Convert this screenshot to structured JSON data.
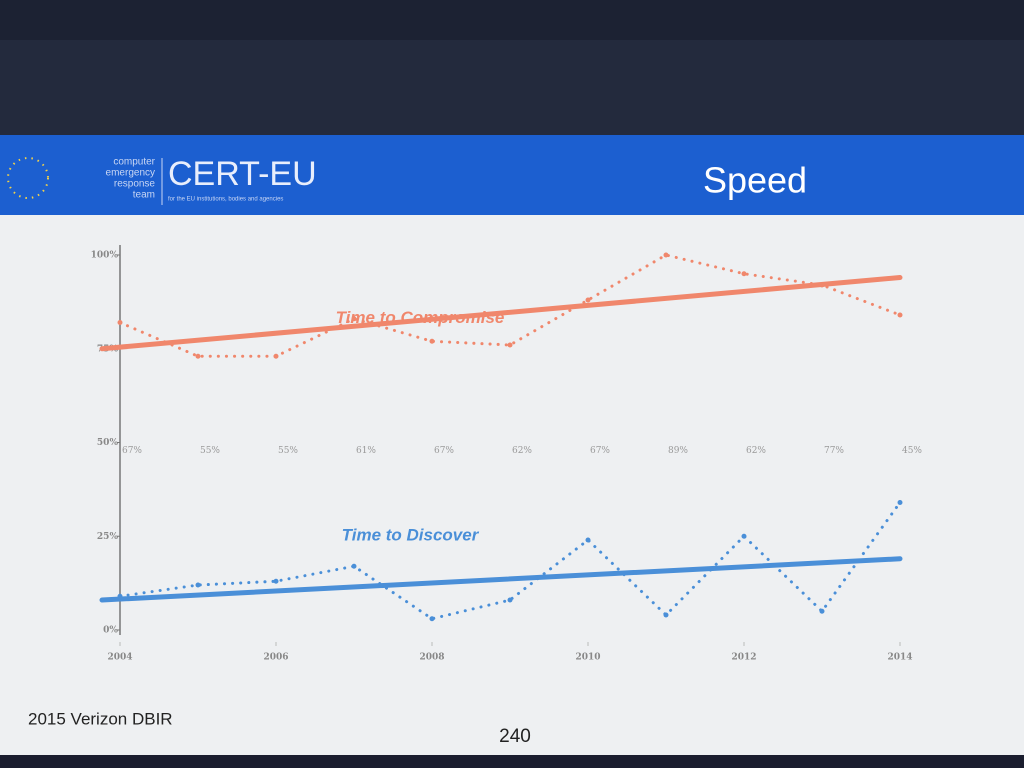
{
  "header": {
    "logo_lines": [
      "computer",
      "emergency",
      "response",
      "team"
    ],
    "logo_title": "CERT-EU",
    "logo_sub": "for the EU institutions, bodies and agencies",
    "title": "Speed"
  },
  "chart_data": {
    "type": "line",
    "x": [
      2004,
      2005,
      2006,
      2007,
      2008,
      2009,
      2010,
      2011,
      2012,
      2013,
      2014
    ],
    "xlim": [
      2004,
      2014
    ],
    "xticks": [
      2004,
      2006,
      2008,
      2010,
      2012,
      2014
    ],
    "ylim": [
      0,
      100
    ],
    "yticks": [
      {
        "value": 0,
        "label": "0%"
      },
      {
        "value": 25,
        "label": "25%"
      },
      {
        "value": 50,
        "label": "50%"
      },
      {
        "value": 75,
        "label": "75%"
      },
      {
        "value": 100,
        "label": "100%"
      }
    ],
    "grid": false,
    "annotations": [
      "67%",
      "55%",
      "55%",
      "61%",
      "67%",
      "62%",
      "67%",
      "89%",
      "62%",
      "77%",
      "45%"
    ],
    "series": [
      {
        "name": "Time to Compromise",
        "color": "#f0876c",
        "values": [
          82,
          73,
          73,
          83,
          77,
          76,
          88,
          100,
          95,
          92,
          84
        ],
        "trend": [
          75,
          94
        ]
      },
      {
        "name": "Time to Discover",
        "color": "#4a8fd8",
        "values": [
          9,
          12,
          13,
          17,
          3,
          8,
          24,
          4,
          25,
          5,
          34
        ],
        "trend": [
          8,
          19
        ]
      }
    ]
  },
  "footer": {
    "source": "2015 Verizon DBIR",
    "page": "240"
  }
}
